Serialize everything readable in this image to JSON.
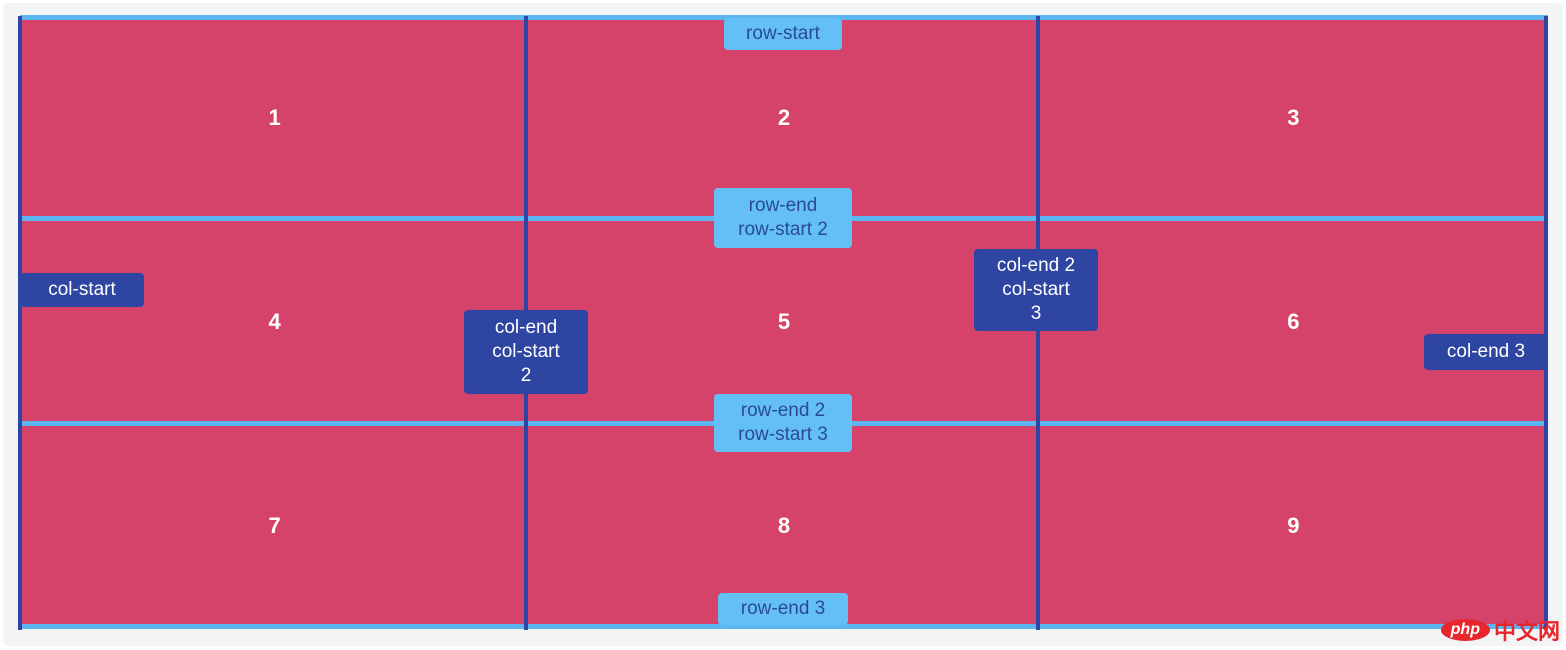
{
  "cells": [
    "1",
    "2",
    "3",
    "4",
    "5",
    "6",
    "7",
    "8",
    "9"
  ],
  "row_lines": [
    {
      "lines": [
        "row-start"
      ]
    },
    {
      "lines": [
        "row-end",
        "row-start 2"
      ]
    },
    {
      "lines": [
        "row-end 2",
        "row-start 3"
      ]
    },
    {
      "lines": [
        "row-end 3"
      ]
    }
  ],
  "col_lines": [
    {
      "lines": [
        "col-start"
      ]
    },
    {
      "lines": [
        "col-end",
        "col-start",
        "2"
      ]
    },
    {
      "lines": [
        "col-end 2",
        "col-start",
        "3"
      ]
    },
    {
      "lines": [
        "col-end 3"
      ]
    }
  ],
  "colors": {
    "cell": "#d6436a",
    "row_line": "#5bb5f1",
    "col_line": "#2e46a2",
    "row_tag_bg": "#64c0f4",
    "row_tag_text": "#2a4b93",
    "col_tag_bg": "#2e46a2"
  },
  "watermark": {
    "brand": "php",
    "suffix": "中文网"
  }
}
